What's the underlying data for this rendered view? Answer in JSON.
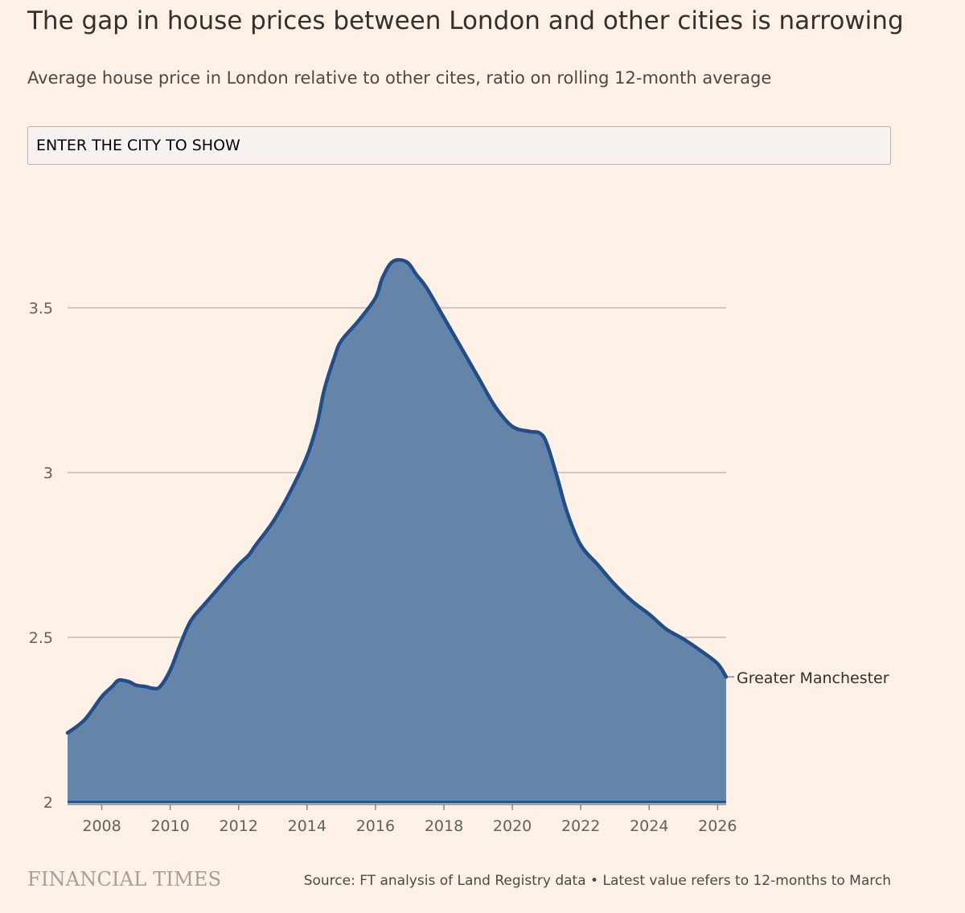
{
  "header": {
    "title": "The gap in house prices between London and other cities is narrowing",
    "subtitle": "Average house price in London relative to other cites, ratio on rolling 12-month average"
  },
  "city_selector": {
    "placeholder": "ENTER THE CITY TO SHOW"
  },
  "footer": {
    "brand": "FINANCIAL TIMES",
    "source": "Source: FT analysis of Land Registry data • Latest value refers to 12-months to March"
  },
  "colors": {
    "background": "#fff1e5",
    "line": "#1f4e8c",
    "area": "#6585a8",
    "grid": "#b8b1aa"
  },
  "chart_data": {
    "type": "area",
    "title": "The gap in house prices between London and other cities is narrowing",
    "xlabel": "",
    "ylabel": "",
    "xlim": [
      2007.0,
      2026.25
    ],
    "ylim": [
      2,
      3.65
    ],
    "x_ticks": [
      "2008",
      "2010",
      "2012",
      "2014",
      "2016",
      "2018",
      "2020",
      "2022",
      "2024",
      "2026"
    ],
    "y_ticks": [
      "2",
      "2.5",
      "3",
      "3.5"
    ],
    "grid": true,
    "legend": "none",
    "series": [
      {
        "name": "Greater Manchester",
        "points": [
          [
            2007.0,
            2.21
          ],
          [
            2007.5,
            2.25
          ],
          [
            2008.0,
            2.32
          ],
          [
            2008.3,
            2.35
          ],
          [
            2008.5,
            2.37
          ],
          [
            2008.8,
            2.365
          ],
          [
            2009.0,
            2.355
          ],
          [
            2009.3,
            2.35
          ],
          [
            2009.5,
            2.345
          ],
          [
            2009.7,
            2.35
          ],
          [
            2010.0,
            2.4
          ],
          [
            2010.3,
            2.48
          ],
          [
            2010.6,
            2.55
          ],
          [
            2011.0,
            2.6
          ],
          [
            2011.5,
            2.66
          ],
          [
            2012.0,
            2.72
          ],
          [
            2012.3,
            2.75
          ],
          [
            2012.5,
            2.78
          ],
          [
            2013.0,
            2.85
          ],
          [
            2013.5,
            2.94
          ],
          [
            2014.0,
            3.05
          ],
          [
            2014.3,
            3.15
          ],
          [
            2014.5,
            3.25
          ],
          [
            2014.8,
            3.35
          ],
          [
            2015.0,
            3.4
          ],
          [
            2015.5,
            3.46
          ],
          [
            2016.0,
            3.53
          ],
          [
            2016.2,
            3.59
          ],
          [
            2016.5,
            3.64
          ],
          [
            2016.9,
            3.64
          ],
          [
            2017.2,
            3.6
          ],
          [
            2017.5,
            3.56
          ],
          [
            2018.0,
            3.47
          ],
          [
            2018.5,
            3.38
          ],
          [
            2019.0,
            3.29
          ],
          [
            2019.5,
            3.2
          ],
          [
            2020.0,
            3.14
          ],
          [
            2020.5,
            3.125
          ],
          [
            2020.8,
            3.12
          ],
          [
            2021.0,
            3.09
          ],
          [
            2021.3,
            2.99
          ],
          [
            2021.6,
            2.88
          ],
          [
            2022.0,
            2.78
          ],
          [
            2022.5,
            2.72
          ],
          [
            2023.0,
            2.66
          ],
          [
            2023.5,
            2.61
          ],
          [
            2024.0,
            2.57
          ],
          [
            2024.5,
            2.525
          ],
          [
            2025.0,
            2.495
          ],
          [
            2025.5,
            2.46
          ],
          [
            2026.0,
            2.42
          ],
          [
            2026.25,
            2.38
          ]
        ]
      }
    ],
    "annotations": [
      "Greater Manchester"
    ]
  }
}
